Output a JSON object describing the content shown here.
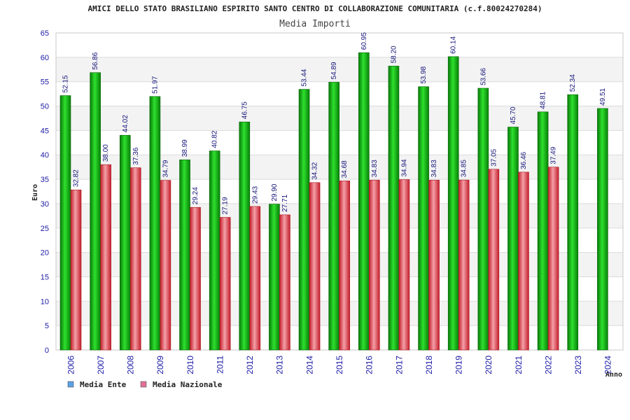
{
  "chart_data": {
    "type": "bar",
    "title": "AMICI DELLO STATO BRASILIANO ESPIRITO SANTO CENTRO DI COLLABORAZIONE COMUNITARIA (c.f.80024270284)",
    "subtitle": "Media Importi",
    "xlabel": "Anno",
    "ylabel": "Euro",
    "ylim": [
      0,
      65
    ],
    "yticks": [
      0,
      5,
      10,
      15,
      20,
      25,
      30,
      35,
      40,
      45,
      50,
      55,
      60,
      65
    ],
    "categories": [
      "2006",
      "2007",
      "2008",
      "2009",
      "2010",
      "2011",
      "2012",
      "2013",
      "2014",
      "2015",
      "2016",
      "2017",
      "2018",
      "2019",
      "2020",
      "2021",
      "2022",
      "2023",
      "2024"
    ],
    "series": [
      {
        "name": "Media Ente",
        "color": "#0fb80f",
        "legend_color": "#5aa0e6",
        "values": [
          52.15,
          56.86,
          44.02,
          51.97,
          38.99,
          40.82,
          46.75,
          29.9,
          53.44,
          54.89,
          60.95,
          58.2,
          53.98,
          60.14,
          53.66,
          45.7,
          48.81,
          52.34,
          49.51
        ],
        "labels": [
          "52.15",
          "56.86",
          "44.02",
          "51.97",
          "38.99",
          "40.82",
          "46.75",
          "29.90",
          "53.44",
          "54.89",
          "60.95",
          "58.20",
          "53.98",
          "60.14",
          "53.66",
          "45.70",
          "48.81",
          "52.34",
          "49.51"
        ]
      },
      {
        "name": "Media Nazionale",
        "color": "#e0404a",
        "legend_color": "#e0709a",
        "values": [
          32.82,
          38.0,
          37.36,
          34.79,
          29.24,
          27.19,
          29.43,
          27.71,
          34.32,
          34.68,
          34.83,
          34.94,
          34.83,
          34.85,
          37.05,
          36.46,
          37.49,
          null,
          null
        ],
        "labels": [
          "32.82",
          "38.00",
          "37.36",
          "34.79",
          "29.24",
          "27.19",
          "29.43",
          "27.71",
          "34.32",
          "34.68",
          "34.83",
          "34.94",
          "34.83",
          "34.85",
          "37.05",
          "36.46",
          "37.49",
          null,
          null
        ]
      }
    ],
    "grid": true,
    "legend_position": "bottom-left"
  }
}
